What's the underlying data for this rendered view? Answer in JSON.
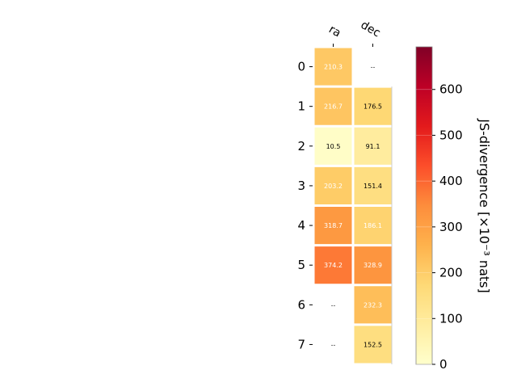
{
  "chart_data": {
    "type": "heatmap",
    "title": "",
    "columns": [
      "ra",
      "dec"
    ],
    "rows": [
      "0",
      "1",
      "2",
      "3",
      "4",
      "5",
      "6",
      "7"
    ],
    "values": [
      [
        210.3,
        null
      ],
      [
        216.7,
        176.5
      ],
      [
        10.5,
        91.1
      ],
      [
        203.2,
        151.4
      ],
      [
        318.7,
        186.1
      ],
      [
        374.2,
        328.9
      ],
      [
        null,
        232.3
      ],
      [
        null,
        152.5
      ]
    ],
    "cell_labels": [
      [
        "210.3",
        "--"
      ],
      [
        "216.7",
        "176.5"
      ],
      [
        "10.5",
        "91.1"
      ],
      [
        "203.2",
        "151.4"
      ],
      [
        "318.7",
        "186.1"
      ],
      [
        "374.2",
        "328.9"
      ],
      [
        "--",
        "232.3"
      ],
      [
        "--",
        "152.5"
      ]
    ],
    "colorbar": {
      "label": "JS-divergence [×10⁻³ nats]",
      "vmin": 0,
      "vmax": 693,
      "ticks": [
        "0",
        "100",
        "200",
        "300",
        "400",
        "500",
        "600"
      ],
      "colormap": "YlOrRd",
      "colors": [
        "#ffffcc",
        "#ffeda0",
        "#fed976",
        "#feb24c",
        "#fd8d3c",
        "#fc4e2a",
        "#e31a1c",
        "#bd0026",
        "#800026"
      ]
    }
  }
}
